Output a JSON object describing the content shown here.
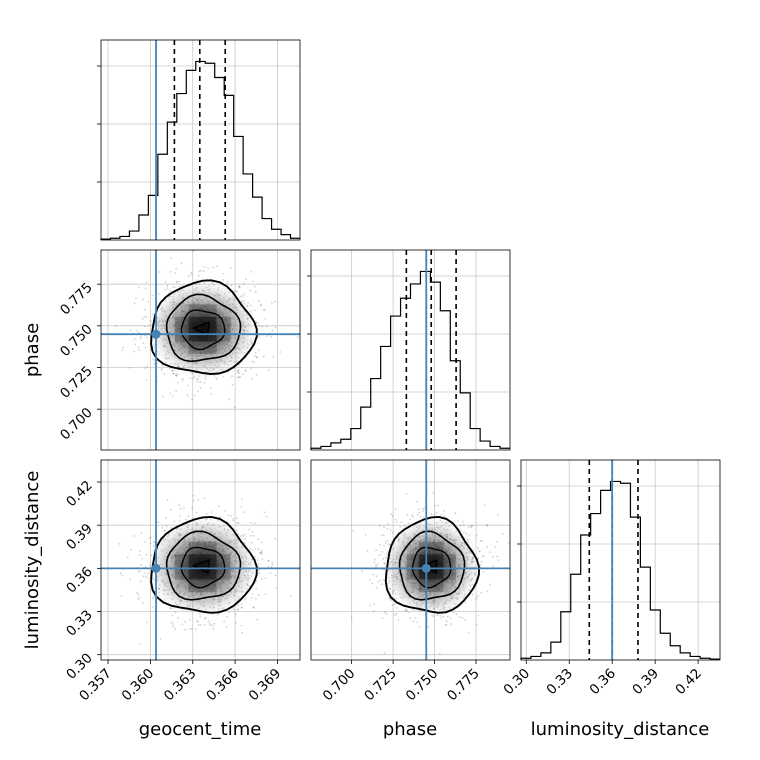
{
  "chart_data": {
    "type": "corner",
    "parameters": [
      "geocent_time",
      "phase",
      "luminosity_distance"
    ],
    "truths": [
      0.3604,
      0.745,
      0.36
    ],
    "truth_color": "#4682b4",
    "ranges": [
      [
        0.3565,
        0.3706
      ],
      [
        0.6755,
        0.7955
      ],
      [
        0.2963,
        0.4353
      ]
    ],
    "ticks": {
      "geocent_time": [
        "0.357",
        "0.360",
        "0.363",
        "0.366",
        "0.369"
      ],
      "phase": [
        "0.700",
        "0.725",
        "0.750",
        "0.775"
      ],
      "luminosity_distance": [
        "0.30",
        "0.33",
        "0.36",
        "0.39",
        "0.42"
      ]
    },
    "quantiles": {
      "geocent_time": [
        0.3617,
        0.3635,
        0.3653
      ],
      "phase": [
        0.733,
        0.748,
        0.763
      ],
      "luminosity_distance": [
        0.344,
        0.36,
        0.378
      ]
    },
    "histograms": {
      "geocent_time": {
        "range": [
          0.3565,
          0.3706
        ],
        "counts": [
          0.5,
          1.0,
          2.0,
          5.0,
          14.0,
          25.0,
          48.0,
          66.0,
          82.0,
          95.0,
          100.0,
          99.0,
          91.0,
          81.0,
          58.0,
          37.0,
          24.0,
          12.0,
          6.0,
          3.0,
          1.0
        ]
      },
      "phase": {
        "range": [
          0.6755,
          0.7955
        ],
        "counts": [
          1.0,
          2.0,
          4.0,
          6.0,
          12.0,
          24.0,
          40.0,
          58.0,
          75.0,
          85.0,
          93.0,
          100.0,
          94.0,
          78.0,
          50.0,
          32.0,
          12.0,
          5.0,
          2.0,
          1.0
        ]
      },
      "luminosity_distance": {
        "range": [
          0.2963,
          0.4353
        ],
        "counts": [
          1.0,
          2.0,
          4.0,
          10.0,
          27.0,
          48.0,
          70.0,
          82.0,
          95.0,
          100.0,
          99.0,
          80.0,
          52.0,
          28.0,
          15.0,
          8.0,
          4.0,
          2.0,
          1.0,
          0.5
        ]
      }
    },
    "posterior_center": {
      "geocent_time": 0.3637,
      "phase": 0.748,
      "luminosity_distance": 0.361
    },
    "posterior_sd": {
      "geocent_time": 0.0018,
      "phase": 0.0135,
      "luminosity_distance": 0.016
    },
    "grid": true
  }
}
